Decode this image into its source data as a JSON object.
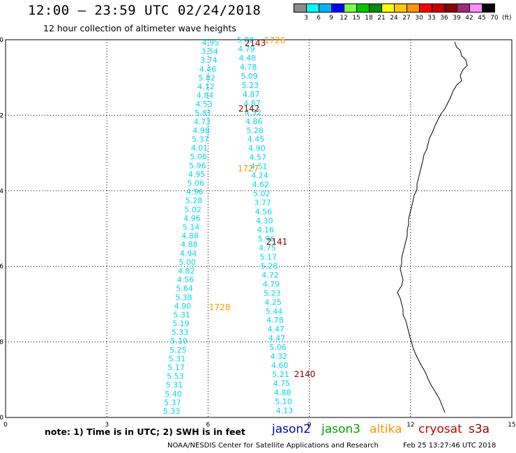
{
  "header": {
    "title": "12:00 – 23:59 UTC 02/24/2018",
    "subtitle": "12 hour collection of altimeter wave heights"
  },
  "colorbar": {
    "unit": "(ft)",
    "labels": [
      "3",
      "6",
      "9",
      "12",
      "15",
      "18",
      "21",
      "24",
      "27",
      "30",
      "33",
      "36",
      "39",
      "42",
      "45",
      "70"
    ],
    "colors": [
      "#8c8c8c",
      "#00ffff",
      "#00b4ff",
      "#0000ff",
      "#7cff4a",
      "#00c800",
      "#008c00",
      "#ffff00",
      "#ffc800",
      "#ff9600",
      "#ff0000",
      "#c80000",
      "#8c0000",
      "#a02878",
      "#ff8cff",
      "#000000"
    ]
  },
  "axes": {
    "x_ticks": [
      "0",
      "3",
      "6",
      "9",
      "12",
      "15"
    ],
    "y_ticks": [
      "-10",
      "-12",
      "-14",
      "-16",
      "-18",
      "-20"
    ]
  },
  "passes": [
    {
      "label": "2143",
      "color": "#8c0000"
    },
    {
      "label": "1726",
      "color": "#ff9600"
    },
    {
      "label": "2142",
      "color": "#8c0000"
    },
    {
      "label": "1727",
      "color": "#ff9600"
    },
    {
      "label": "2141",
      "color": "#8c0000"
    },
    {
      "label": "1728",
      "color": "#ff9600"
    },
    {
      "label": "2140",
      "color": "#8c0000"
    }
  ],
  "track_west": {
    "color": "#00d8e8",
    "values": [
      "4.95",
      "3.54",
      "3.74",
      "4.46",
      "5.82",
      "4.12",
      "4.84",
      "4.53",
      "5.81",
      "4.73",
      "4.98",
      "5.37",
      "4.01",
      "5.06",
      "5.96",
      "4.95",
      "5.06",
      "4.96",
      "5.28",
      "5.02",
      "4.96",
      "5.14",
      "4.88",
      "4.88",
      "4.94",
      "5.00",
      "4.82",
      "4.56",
      "5.64",
      "5.38",
      "4.90",
      "5.31",
      "5.19",
      "5.33",
      "5.10",
      "5.25",
      "5.31",
      "5.17",
      "5.53",
      "5.31",
      "5.40",
      "5.37",
      "5.33"
    ]
  },
  "track_east": {
    "color": "#00d8e8",
    "values": [
      "5.80",
      "4.79",
      "4.48",
      "4.78",
      "5.09",
      "5.23",
      "4.87",
      "4.87",
      "4.52",
      "4.86",
      "5.28",
      "4.45",
      "4.90",
      "4.57",
      "4.51",
      "4.24",
      "4.62",
      "5.02",
      "3.77",
      "4.56",
      "4.30",
      "4.16",
      "5.96",
      "4.75",
      "5.17",
      "5.28",
      "4.72",
      "4.79",
      "5.23",
      "4.25",
      "5.44",
      "4.78",
      "4.47",
      "4.47",
      "5.06",
      "4.32",
      "4.60",
      "5.21",
      "4.75",
      "4.88",
      "5.10",
      "4.13"
    ]
  },
  "note": "note: 1) Time is in UTC; 2) SWH is in feet",
  "legend": [
    {
      "label": "jason2",
      "color": "#0000c8"
    },
    {
      "label": "jason3",
      "color": "#00a000"
    },
    {
      "label": "altika",
      "color": "#ff9600"
    },
    {
      "label": "cryosat",
      "color": "#c80000"
    },
    {
      "label": "s3a",
      "color": "#8c0000"
    }
  ],
  "footer": {
    "credit": "NOAA/NESDIS Center for Satellite Applications and Research",
    "timestamp": "Feb 25 13:27:46 UTC 2018"
  }
}
